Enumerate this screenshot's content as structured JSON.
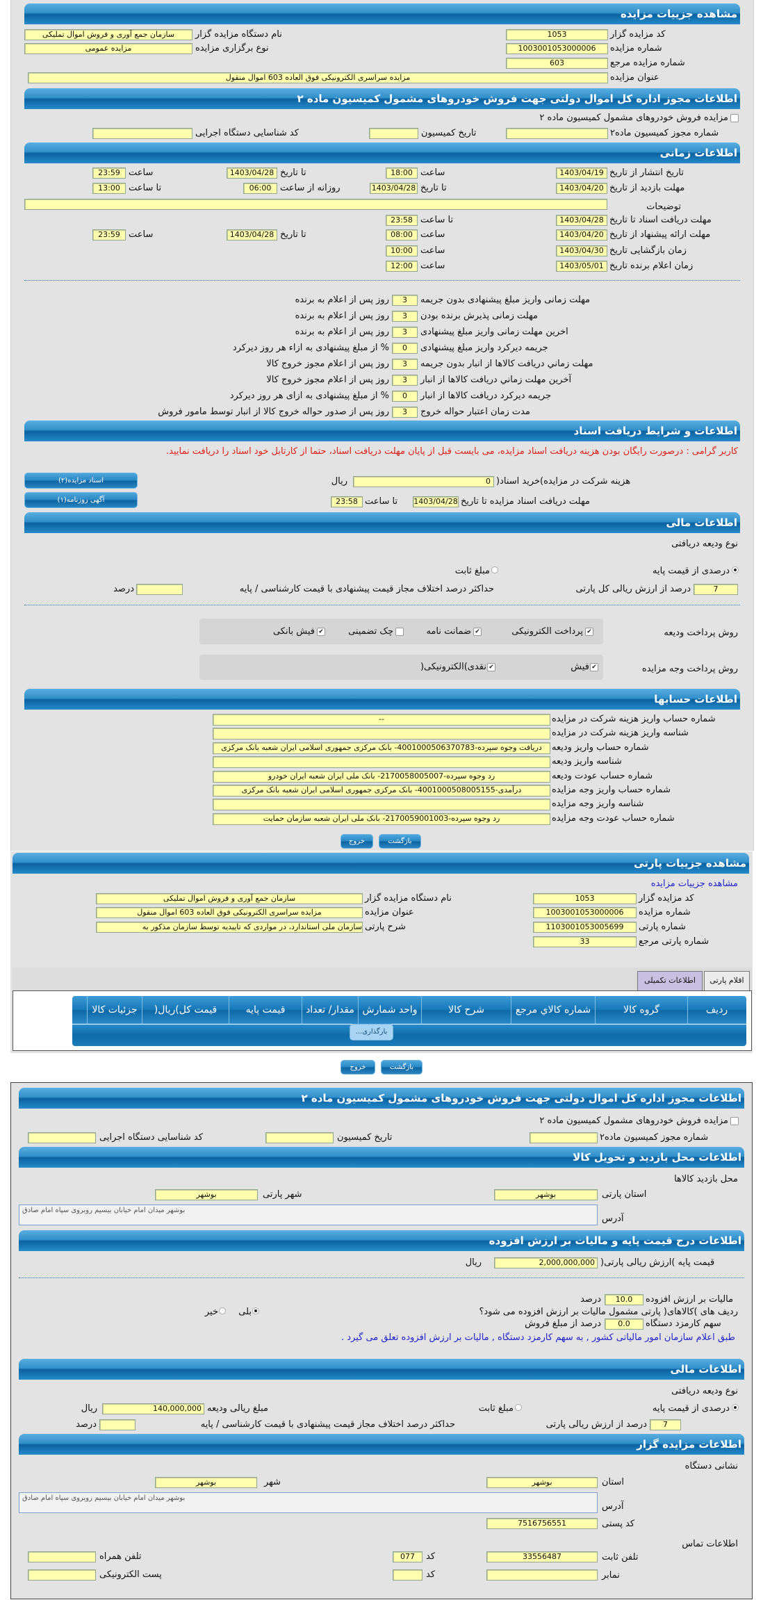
{
  "colors": {
    "header_blue": "#1a79b8",
    "input_yellow": "#ffffae",
    "panel_grey": "#e3e3e3",
    "notice_red": "#e0201a",
    "link_blue": "#2222cc",
    "active_tab": "#c8c0e0"
  },
  "auction_details": {
    "title": "مشاهده جزییات مزایده",
    "code_label": "کد مزایده گزار",
    "code": "1053",
    "org_label": "نام دستگاه مزایده گزار",
    "org": "سازمان جمع آوری و فروش اموال تملیکی",
    "number_label": "شماره مزایده",
    "number": "1003001053000006",
    "type_label": "نوع برگزاری مزایده",
    "type": "مزایده عمومی",
    "ref_label": "شماره مزایده مرجع",
    "ref": "603",
    "subject_label": "عنوان مزایده",
    "subject": "مزایده سراسری الکترونیکی فوق العاده 603 اموال منقول"
  },
  "permit": {
    "title": "اطلاعات مجوز اداره کل اموال دولتی جهت فروش خودروهای مشمول کمیسیون ماده ۲",
    "checkbox_label": "مزایده فروش خودروهای مشمول کمیسیون ماده ۲",
    "checked": false,
    "permit_no_label": "شماره مجوز کمیسیون ماده۲",
    "permit_no": "",
    "date_label": "تاریخ کمیسیون",
    "date": "",
    "exec_code_label": "کد شناسایی دستگاه اجرایی",
    "exec_code": ""
  },
  "timing": {
    "title": "اطلاعات زمانی",
    "publish": {
      "label": "تاریخ انتشار از تاریخ",
      "from": "1403/04/19",
      "time1_label": "ساعت",
      "time1": "18:00",
      "to_label": "تا تاریخ",
      "to": "1403/04/28",
      "time2_label": "ساعت",
      "time2": "23:59"
    },
    "visit": {
      "label": "مهلت بازدید از تاریخ",
      "from": "1403/04/20",
      "to_label": "تا تاریخ",
      "to": "1403/04/28",
      "daily_label": "روزانه از ساعت",
      "time1": "06:00",
      "time2_label": "تا ساعت",
      "time2": "13:00"
    },
    "notes_label": "توضیحات",
    "notes": "",
    "docs": {
      "label": "مهلت دریافت اسناد تا تاریخ",
      "date": "1403/04/28",
      "time_label": "تا ساعت",
      "time": "23:58"
    },
    "offer": {
      "label": "مهلت ارائه پیشنهاد از تاریخ",
      "from": "1403/04/20",
      "time1_label": "ساعت",
      "time1": "08:00",
      "to_label": "تا تاریخ",
      "to": "1403/04/28",
      "time2_label": "ساعت",
      "time2": "23:59"
    },
    "opening": {
      "label": "زمان بازگشایی   تاریخ",
      "date": "1403/04/30",
      "time_label": "ساعت",
      "time": "10:00"
    },
    "winner": {
      "label": "زمان اعلام برنده   تاریخ",
      "date": "1403/05/01",
      "time_label": "ساعت",
      "time": "12:00"
    }
  },
  "deadlines": [
    {
      "label": "مهلت زمانی واریز مبلغ پیشنهادی بدون جریمه",
      "value": "3",
      "suffix": "روز پس از اعلام به برنده"
    },
    {
      "label": "مهلت زمانی پذیرش برنده بودن",
      "value": "3",
      "suffix": "روز پس از اعلام به برنده"
    },
    {
      "label": "اخرین مهلت زمانی واریز مبلغ پیشنهادی",
      "value": "3",
      "suffix": "روز پس از اعلام به برنده"
    },
    {
      "label": "جریمه دیرکرد واریز مبلغ پیشنهادی",
      "value": "0",
      "suffix": "% از مبلغ پیشنهادی به ازاء هر روز دیرکرد"
    },
    {
      "label": "مهلت زماني دريافت کالاها از انبار بدون جريمه",
      "value": "3",
      "suffix": "روز پس از اعلام مجوز خروج کالا"
    },
    {
      "label": "آخرین مهلت زماني دريافت کالاها از انبار",
      "value": "3",
      "suffix": "روز پس از اعلام مجوز خروج کالا"
    },
    {
      "label": "جریمه دیرکرد دریافت کالاها از انبار",
      "value": "0",
      "suffix": "% از مبلغ پیشنهادی به ازای هر روز دیرکرد"
    },
    {
      "label": "مدت زمان اعتبار حواله خروج",
      "value": "3",
      "suffix": "روز پس از صدور حواله خروج کالا از انبار توسط مامور فروش"
    }
  ],
  "documents": {
    "title": "اطلاعات و شرایط دریافت اسناد",
    "notice": "کاربر گرامی : درصورت رایگان بودن هزینه دریافت اسناد مزایده، می بایست قبل از پایان مهلت دریافت اسناد، حتما از کارتابل خود اسناد را دریافت نمایید.",
    "fee_label": "هزینه شرکت در مزایده)خرید اسناد(",
    "fee": "0",
    "fee_unit": "ریال",
    "deadline_label": "مهلت دریافت اسناد مزایده تا تاریخ",
    "deadline_date": "1403/04/28",
    "time_label": "تا ساعت",
    "deadline_time": "23:58",
    "btn_docs": "اسناد مزایده(۲)",
    "btn_ad": "آگهی روزنامه(۱)"
  },
  "financial": {
    "title": "اطلاعات مالی",
    "deposit_type_label": "نوع ودیعه دریافتی",
    "opt_percent": "درصدی از قیمت پایه",
    "opt_fixed": "مبلغ ثابت",
    "selected": "percent",
    "percent": "7",
    "percent_suffix": "درصد از ارزش ریالی کل پارتی",
    "max_diff_label": "حداکثر درصد اختلاف مجاز قیمت پیشنهادی با قیمت کارشناسی / پایه",
    "max_diff": "",
    "max_diff_unit": "درصد",
    "deposit_methods_label": "روش پرداخت ودیعه",
    "deposit_methods": [
      {
        "label": "پرداخت الکترونیکی",
        "checked": true
      },
      {
        "label": "ضمانت نامه",
        "checked": true
      },
      {
        "label": "چک تضمینی",
        "checked": false
      },
      {
        "label": "فیش بانکی",
        "checked": true
      }
    ],
    "payment_methods_label": "روش پرداخت وجه مزایده",
    "payment_methods": [
      {
        "label": "فیش",
        "checked": true
      },
      {
        "label": "نقدی)الکترونیکی(",
        "checked": true
      }
    ]
  },
  "accounts": {
    "title": "اطلاعات حسابها",
    "rows": [
      {
        "label": "شماره حساب واریز هزینه شرکت در مزایده",
        "value": "--"
      },
      {
        "label": "شناسه واریز هزینه شرکت در مزایده",
        "value": ""
      },
      {
        "label": "شماره حساب واریز ودیعه",
        "value": "دریافت وجوه سپرده-4001000506370783- بانک مرکزی جمهوری اسلامی ایران شعبه بانک مرکزی"
      },
      {
        "label": "شناسه واریز ودیعه",
        "value": ""
      },
      {
        "label": "شماره حساب عودت ودیعه",
        "value": "رد وجوه سپرده-2170058005007- بانک ملی ایران شعبه ایران خودرو"
      },
      {
        "label": "شماره حساب واریز وجه مزایده",
        "value": "درآمدی-4001000508005155- بانک مرکزی جمهوری اسلامی ایران شعبه بانک مرکزی"
      },
      {
        "label": "شناسه واریز وجه مزایده",
        "value": ""
      },
      {
        "label": "شماره حساب عودت وجه مزایده",
        "value": "رد وجوه سپرده-2170059001003- بانک ملی ایران شعبه سازمان حمایت"
      }
    ]
  },
  "actions": {
    "back": "بازگشت",
    "exit": "خروج"
  },
  "lot": {
    "title": "مشاهده جزییات پارتی",
    "link": "مشاهده جزییات مزایده",
    "code_label": "کد مزایده گزار",
    "code": "1053",
    "org_label": "نام دستگاه مزایده گزار",
    "org": "سازمان جمع آوری و فروش اموال تملیکی",
    "number_label": "شماره مزایده",
    "number": "1003001053000006",
    "subject_label": "عنوان مزایده",
    "subject": "مزایده سراسری الکترونیکی فوق العاده 603 اموال منقول",
    "lot_no_label": "شماره پارتی",
    "lot_no": "1103001053005699",
    "lot_desc_label": "شرح پارتی",
    "lot_desc": "سازمان ملی استاندارد، در مواردی که تاییدیه توسط سازمان مذکور به",
    "lot_ref_label": "شماره پارتی مرجع",
    "lot_ref": "33",
    "tabs": [
      {
        "label": "اقلام پارتی",
        "active": true
      },
      {
        "label": "اطلاعات تکمیلی",
        "active": false
      }
    ],
    "table": {
      "columns": [
        "ردیف",
        "گروه کالا",
        "شماره کالاي مرجع",
        "شرح کالا",
        "واحد شمارش",
        "مقدار/ تعداد",
        "قیمت پایه",
        "قیمت کل)ریال(",
        "جزئیات کالا"
      ],
      "loading": "بارگذاری..."
    }
  },
  "location": {
    "title": "اطلاعات محل بازدید و تحویل کالا",
    "heading": "محل بازدید کالاها",
    "province_label": "استان پارتی",
    "province": "بوشهر",
    "city_label": "شهر پارتی",
    "city": "بوشهر",
    "address_label": "آدرس",
    "address": "بوشهر میدان امام خیابان بیسیم روبروی سپاه امام صادق"
  },
  "pricing": {
    "title": "اطلاعات درج قیمت پایه و مالیات بر ارزش افزوده",
    "base_label": "قیمت پایه )ارزش ریالی پارتی(",
    "base": "2,000,000,000",
    "base_unit": "ریال",
    "vat_label": "مالیات بر ارزش افزوده",
    "vat": "10.0",
    "vat_unit": "درصد",
    "vat_question": "ردیف های )کالاهای( پارتی مشمول مالیات بر ارزش افزوده می شود؟",
    "yes": "بلی",
    "no": "خیر",
    "vat_selected": "yes",
    "fee_label": "سهم کارمزد دستگاه",
    "fee": "0.0",
    "fee_unit": "درصد از مبلغ فروش",
    "note": "طبق اعلام سازمان امور مالیاتی کشور , به سهم کارمزد دستگاه , مالیات بر ارزش افزوده تعلق می گیرد ."
  },
  "lot_financial": {
    "title": "اطلاعات مالی",
    "deposit_type_label": "نوع ودیعه دریافتی",
    "opt_percent": "درصدی از قیمت پایه",
    "opt_fixed": "مبلغ ثابت",
    "selected": "percent",
    "deposit_amount_label": "مبلغ ریالی ودیعه",
    "deposit_amount": "140,000,000",
    "deposit_unit": "ریال",
    "percent": "7",
    "percent_suffix": "درصد از ارزش ریالی پارتی",
    "max_diff_label": "حداکثر درصد اختلاف مجاز قیمت پیشنهادی با قیمت کارشناسی / پایه",
    "max_diff": "",
    "max_diff_unit": "درصد"
  },
  "auctioneer": {
    "title": "اطلاعات مزایده گزار",
    "address_heading": "نشانی دستگاه",
    "province_label": "استان",
    "province": "بوشهر",
    "city_label": "شهر",
    "city": "بوشهر",
    "address_label": "آدرس",
    "address": "بوشهر میدان امام خیابان بیسیم روبروی سپاه امام صادق",
    "postal_label": "کد پستی",
    "postal": "7516756551",
    "contact_heading": "اطلاعات تماس",
    "phone_label": "تلفن ثابت",
    "phone": "33556487",
    "code_label": "کد",
    "phone_code": "077",
    "fax_code": "",
    "mobile_label": "تلفن همراه",
    "mobile": "",
    "fax_label": "نمابر",
    "fax": "",
    "email_label": "پست الکترونیکی",
    "email": ""
  }
}
